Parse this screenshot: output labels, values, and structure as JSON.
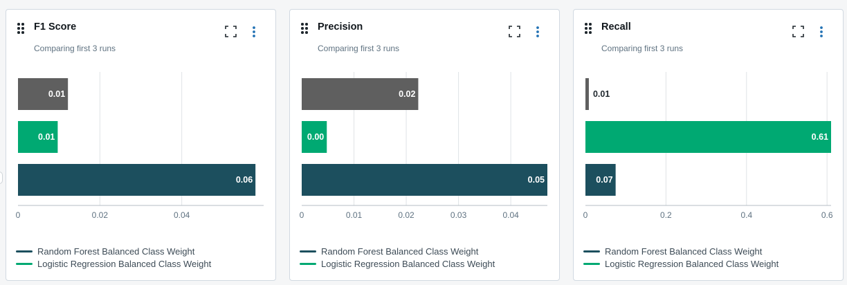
{
  "colors": {
    "random_forest": "#1c4f5e",
    "logistic_regression": "#00a972",
    "third_run": "#5f5f5f",
    "grid": "#dfe3e6",
    "axis": "#b5bdc4"
  },
  "icons": {
    "drag": "drag-handle-icon",
    "expand": "fullscreen-icon",
    "menu": "overflow-menu-icon"
  },
  "legend": [
    {
      "label": "Random Forest Balanced Class Weight",
      "color": "#1c4f5e"
    },
    {
      "label": "Logistic Regression Balanced Class Weight",
      "color": "#00a972"
    }
  ],
  "chart_data": [
    {
      "type": "bar",
      "orientation": "horizontal",
      "title": "F1 Score",
      "subtitle": "Comparing first 3 runs",
      "xlim": [
        0,
        0.06
      ],
      "ticks": [
        0,
        0.02,
        0.04
      ],
      "tick_labels": [
        "0",
        "0.02",
        "0.04"
      ],
      "bars": [
        {
          "value": 0.0122,
          "label": "0.01",
          "color": "#5f5f5f"
        },
        {
          "value": 0.0097,
          "label": "0.01",
          "color": "#00a972"
        },
        {
          "value": 0.058,
          "label": "0.06",
          "color": "#1c4f5e"
        }
      ]
    },
    {
      "type": "bar",
      "orientation": "horizontal",
      "title": "Precision",
      "subtitle": "Comparing first 3 runs",
      "xlim": [
        0,
        0.047
      ],
      "ticks": [
        0,
        0.01,
        0.02,
        0.03,
        0.04
      ],
      "tick_labels": [
        "0",
        "0.01",
        "0.02",
        "0.03",
        "0.04"
      ],
      "bars": [
        {
          "value": 0.0223,
          "label": "0.02",
          "color": "#5f5f5f"
        },
        {
          "value": 0.0048,
          "label": "0.00",
          "color": "#00a972"
        },
        {
          "value": 0.047,
          "label": "0.05",
          "color": "#1c4f5e"
        }
      ]
    },
    {
      "type": "bar",
      "orientation": "horizontal",
      "title": "Recall",
      "subtitle": "Comparing first 3 runs",
      "xlim": [
        0,
        0.61
      ],
      "ticks": [
        0,
        0.2,
        0.4,
        0.6
      ],
      "tick_labels": [
        "0",
        "0.2",
        "0.4",
        "0.6"
      ],
      "bars": [
        {
          "value": 0.0085,
          "label": "0.01",
          "color": "#5f5f5f"
        },
        {
          "value": 0.61,
          "label": "0.61",
          "color": "#00a972"
        },
        {
          "value": 0.075,
          "label": "0.07",
          "color": "#1c4f5e"
        }
      ]
    }
  ]
}
